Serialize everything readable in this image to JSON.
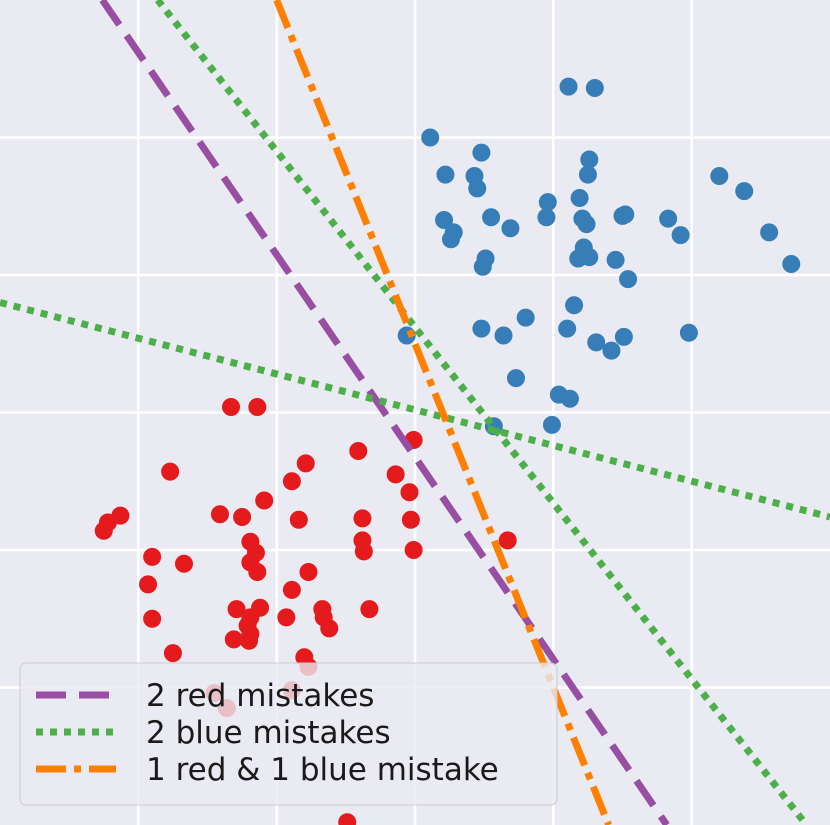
{
  "chart_data": {
    "type": "scatter",
    "title": "",
    "xlabel": "",
    "ylabel": "",
    "xlim": [
      0,
      6
    ],
    "ylim": [
      0,
      6
    ],
    "grid": true,
    "legend_position": "bottom-left",
    "colors": {
      "background": "#eaeaf2",
      "grid": "#ffffff",
      "red": "#e41a1c",
      "blue": "#377eb8",
      "purple": "#984ea3",
      "green": "#4daf4a",
      "orange": "#ff7f00"
    },
    "red_points": [
      [
        1.67,
        3.04
      ],
      [
        1.86,
        3.04
      ],
      [
        1.23,
        2.57
      ],
      [
        0.87,
        2.25
      ],
      [
        0.78,
        2.2
      ],
      [
        0.75,
        2.14
      ],
      [
        1.1,
        1.95
      ],
      [
        1.33,
        1.9
      ],
      [
        1.07,
        1.75
      ],
      [
        1.1,
        1.5
      ],
      [
        1.25,
        1.25
      ],
      [
        1.59,
        2.26
      ],
      [
        1.75,
        2.24
      ],
      [
        1.91,
        2.36
      ],
      [
        2.11,
        2.5
      ],
      [
        2.21,
        2.63
      ],
      [
        2.16,
        2.22
      ],
      [
        1.81,
        2.06
      ],
      [
        1.85,
        1.98
      ],
      [
        1.81,
        1.91
      ],
      [
        1.86,
        1.84
      ],
      [
        2.23,
        1.84
      ],
      [
        2.11,
        1.71
      ],
      [
        1.71,
        1.57
      ],
      [
        1.88,
        1.58
      ],
      [
        1.81,
        1.51
      ],
      [
        1.79,
        1.45
      ],
      [
        1.81,
        1.39
      ],
      [
        1.69,
        1.35
      ],
      [
        1.8,
        1.34
      ],
      [
        2.07,
        1.51
      ],
      [
        2.33,
        1.57
      ],
      [
        2.34,
        1.51
      ],
      [
        2.38,
        1.43
      ],
      [
        2.2,
        1.22
      ],
      [
        2.23,
        1.15
      ],
      [
        2.59,
        2.72
      ],
      [
        2.86,
        2.55
      ],
      [
        2.99,
        2.8
      ],
      [
        2.96,
        2.42
      ],
      [
        2.97,
        2.22
      ],
      [
        2.62,
        2.23
      ],
      [
        2.62,
        2.07
      ],
      [
        2.63,
        1.99
      ],
      [
        2.67,
        1.57
      ],
      [
        2.99,
        2.0
      ],
      [
        3.67,
        2.07
      ],
      [
        1.55,
        0.96
      ],
      [
        2.11,
        0.98
      ],
      [
        1.64,
        0.85
      ],
      [
        2.51,
        0.02
      ]
    ],
    "blue_points": [
      [
        4.11,
        5.37
      ],
      [
        4.3,
        5.36
      ],
      [
        3.11,
        5.0
      ],
      [
        3.48,
        4.89
      ],
      [
        4.26,
        4.84
      ],
      [
        3.22,
        4.73
      ],
      [
        3.43,
        4.72
      ],
      [
        3.45,
        4.63
      ],
      [
        4.25,
        4.73
      ],
      [
        5.2,
        4.72
      ],
      [
        5.38,
        4.61
      ],
      [
        3.96,
        4.53
      ],
      [
        4.19,
        4.56
      ],
      [
        3.55,
        4.42
      ],
      [
        3.21,
        4.4
      ],
      [
        3.69,
        4.34
      ],
      [
        3.28,
        4.31
      ],
      [
        3.26,
        4.26
      ],
      [
        3.95,
        4.42
      ],
      [
        4.21,
        4.41
      ],
      [
        4.24,
        4.37
      ],
      [
        4.5,
        4.43
      ],
      [
        4.52,
        4.44
      ],
      [
        4.83,
        4.41
      ],
      [
        4.92,
        4.29
      ],
      [
        5.56,
        4.31
      ],
      [
        5.72,
        4.08
      ],
      [
        3.51,
        4.12
      ],
      [
        3.49,
        4.06
      ],
      [
        4.22,
        4.2
      ],
      [
        4.23,
        4.15
      ],
      [
        4.18,
        4.12
      ],
      [
        4.26,
        4.13
      ],
      [
        4.45,
        4.11
      ],
      [
        4.54,
        3.97
      ],
      [
        4.15,
        3.78
      ],
      [
        3.8,
        3.69
      ],
      [
        4.1,
        3.61
      ],
      [
        3.48,
        3.61
      ],
      [
        3.64,
        3.56
      ],
      [
        2.94,
        3.56
      ],
      [
        4.31,
        3.51
      ],
      [
        4.51,
        3.55
      ],
      [
        4.42,
        3.45
      ],
      [
        4.98,
        3.58
      ],
      [
        3.73,
        3.25
      ],
      [
        4.04,
        3.13
      ],
      [
        4.12,
        3.1
      ],
      [
        3.57,
        2.9
      ],
      [
        3.99,
        2.91
      ]
    ],
    "series": [
      {
        "name": "2 red mistakes",
        "style": "dashed",
        "color": "#984ea3",
        "points": [
          [
            0.74,
            6.0
          ],
          [
            4.82,
            0.0
          ]
        ]
      },
      {
        "name": "2 blue mistakes",
        "style": "dotted",
        "color": "#4daf4a",
        "points": [
          [
            1.14,
            6.0
          ],
          [
            5.83,
            0.0
          ]
        ]
      },
      {
        "name": "2 blue mistakes",
        "style": "dotted",
        "color": "#4daf4a",
        "points": [
          [
            0.0,
            3.8
          ],
          [
            6.0,
            2.24
          ]
        ]
      },
      {
        "name": "1 red & 1 blue mistake",
        "style": "dashdot",
        "color": "#ff7f00",
        "points": [
          [
            2.0,
            6.0
          ],
          [
            4.4,
            0.0
          ]
        ]
      }
    ],
    "legend": [
      {
        "label": "2 red mistakes",
        "style": "dashed",
        "color": "#984ea3"
      },
      {
        "label": "2 blue mistakes",
        "style": "dotted",
        "color": "#4daf4a"
      },
      {
        "label": "1 red & 1 blue mistake",
        "style": "dashdot",
        "color": "#ff7f00"
      }
    ]
  }
}
